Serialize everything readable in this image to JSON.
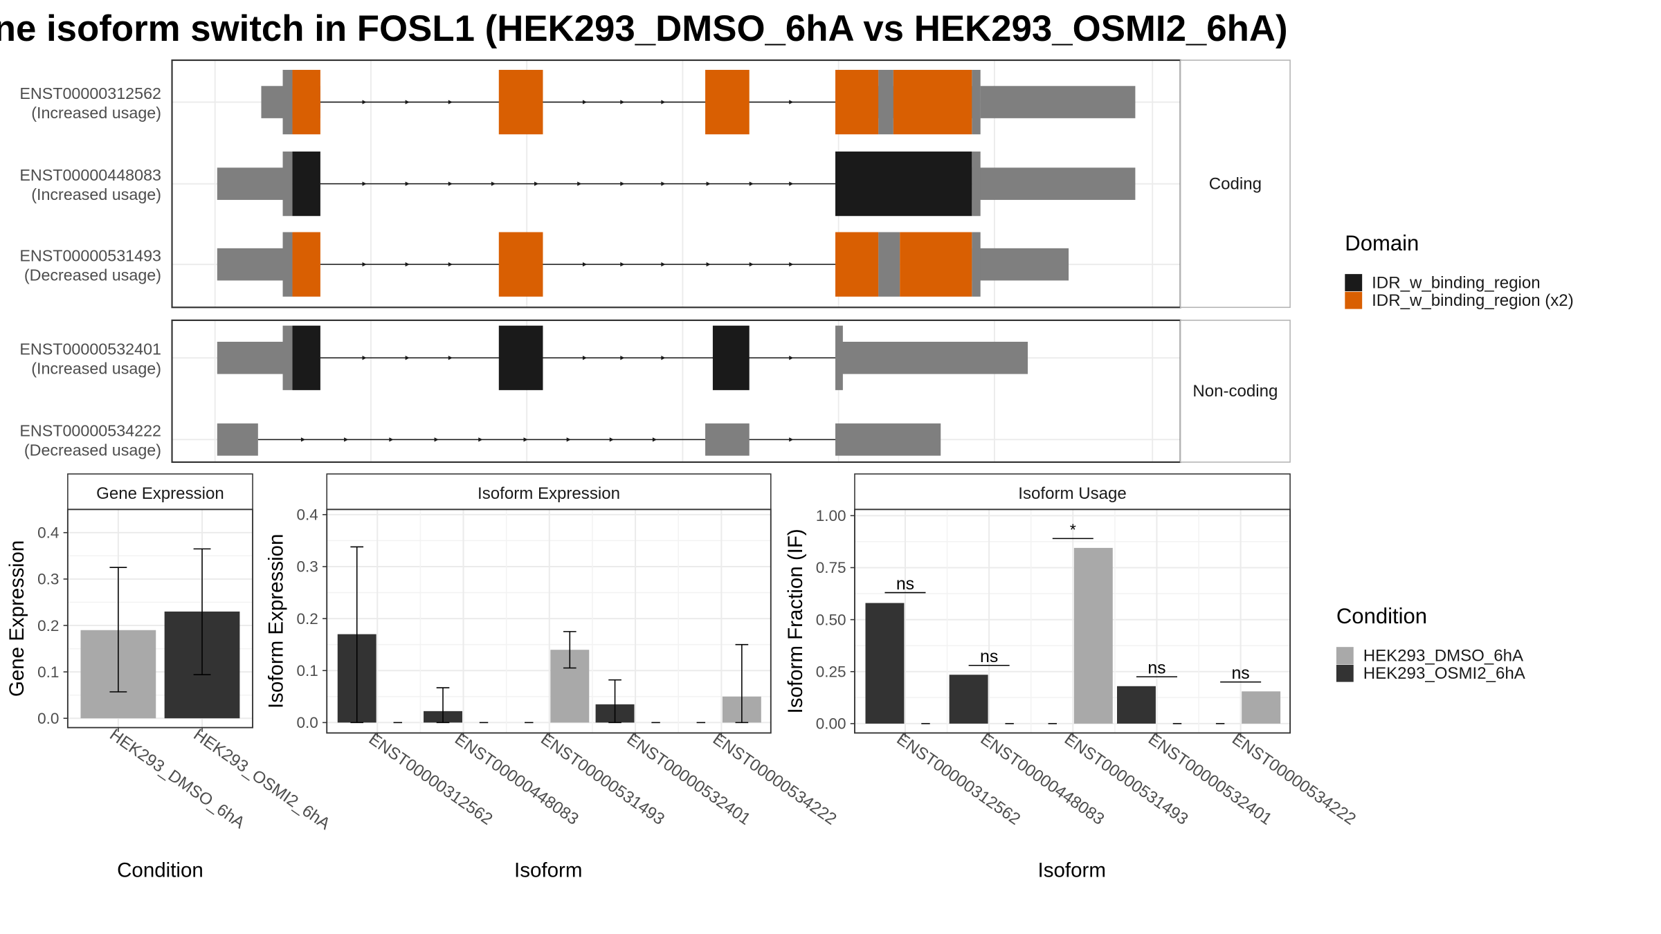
{
  "title": "ne isoform switch in FOSL1 (HEK293_DMSO_6hA vs HEK293_OSMI2_6hA)",
  "colors": {
    "utr": "#7f7f7f",
    "domain_black": "#1a1a1a",
    "domain_orange": "#d95f02",
    "dmso": "#a9a9a9",
    "osmi2": "#333333",
    "grid": "#ebebeb",
    "strip_bg": "#ffffff",
    "panel_border": "#333333"
  },
  "transcript_panel": {
    "coding_label": "Coding",
    "noncoding_label": "Non-coding",
    "transcripts": [
      {
        "id": "ENST00000312562",
        "usage": "(Increased usage)",
        "group": "coding",
        "line": [
          298,
          777
        ],
        "utr": [
          [
            243,
            298
          ],
          [
            777,
            912
          ],
          [
            912,
            1056
          ]
        ],
        "cds_grey": [
          [
            263,
            272
          ],
          [
            817,
            831
          ],
          [
            904,
            912
          ]
        ],
        "domains": [
          [
            272,
            298,
            "orange"
          ],
          [
            464,
            505,
            "orange"
          ],
          [
            656,
            697,
            "orange"
          ],
          [
            777,
            817,
            "orange"
          ],
          [
            831,
            904,
            "orange"
          ]
        ],
        "arrows": [
          340,
          380,
          420,
          545,
          580,
          618,
          737
        ]
      },
      {
        "id": "ENST00000448083",
        "usage": "(Increased usage)",
        "group": "coding",
        "line": [
          298,
          777
        ],
        "utr": [
          [
            202,
            272
          ],
          [
            904,
            1056
          ]
        ],
        "cds_grey": [
          [
            263,
            272
          ],
          [
            904,
            912
          ]
        ],
        "domains": [
          [
            272,
            298,
            "black"
          ],
          [
            777,
            904,
            "black"
          ]
        ],
        "arrows": [
          340,
          380,
          420,
          460,
          500,
          540,
          580,
          618,
          660,
          700,
          737
        ]
      },
      {
        "id": "ENST00000531493",
        "usage": "(Decreased usage)",
        "group": "coding",
        "line": [
          298,
          777
        ],
        "utr": [
          [
            202,
            272
          ],
          [
            904,
            994
          ]
        ],
        "cds_grey": [
          [
            263,
            272
          ],
          [
            817,
            837
          ],
          [
            904,
            912
          ]
        ],
        "domains": [
          [
            272,
            298,
            "orange"
          ],
          [
            464,
            505,
            "orange"
          ],
          [
            777,
            817,
            "orange"
          ],
          [
            837,
            904,
            "orange"
          ]
        ],
        "arrows": [
          340,
          380,
          420,
          545,
          580,
          618,
          660,
          700,
          737
        ]
      },
      {
        "id": "ENST00000532401",
        "usage": "(Increased usage)",
        "group": "noncoding",
        "line": [
          298,
          777
        ],
        "utr": [
          [
            202,
            272
          ],
          [
            777,
            956
          ]
        ],
        "cds_grey": [
          [
            263,
            272
          ],
          [
            777,
            784
          ]
        ],
        "domains": [
          [
            272,
            298,
            "black"
          ],
          [
            464,
            505,
            "black"
          ],
          [
            663,
            697,
            "black"
          ]
        ],
        "arrows": [
          340,
          380,
          420,
          545,
          580,
          618,
          737
        ]
      },
      {
        "id": "ENST00000534222",
        "usage": "(Decreased usage)",
        "group": "noncoding",
        "line": [
          240,
          777
        ],
        "utr": [
          [
            202,
            240
          ],
          [
            656,
            697
          ],
          [
            777,
            875
          ]
        ],
        "cds_grey": [],
        "domains": [],
        "arrows": [
          283,
          323,
          365,
          407,
          448,
          490,
          530,
          570,
          610,
          737
        ]
      }
    ]
  },
  "domain_legend": {
    "title": "Domain",
    "items": [
      {
        "label": "IDR_w_binding_region",
        "color": "#1a1a1a"
      },
      {
        "label": "IDR_w_binding_region (x2)",
        "color": "#d95f02"
      }
    ]
  },
  "condition_legend": {
    "title": "Condition",
    "items": [
      {
        "label": "HEK293_DMSO_6hA",
        "color": "#a9a9a9"
      },
      {
        "label": "HEK293_OSMI2_6hA",
        "color": "#333333"
      }
    ]
  },
  "chart_data": [
    {
      "type": "bar",
      "title": "Gene Expression",
      "xlabel": "Condition",
      "ylabel": "Gene Expression",
      "categories": [
        "HEK293_DMSO_6hA",
        "HEK293_OSMI2_6hA"
      ],
      "values": [
        0.19,
        0.23
      ],
      "error_low": [
        0.057,
        0.094
      ],
      "error_high": [
        0.325,
        0.365
      ],
      "colors": [
        "#a9a9a9",
        "#333333"
      ],
      "ylim": [
        -0.02,
        0.45
      ],
      "yticks": [
        0.0,
        0.1,
        0.2,
        0.3,
        0.4
      ],
      "ytick_labels": [
        "0.0",
        "0.1",
        "0.2",
        "0.3",
        "0.4"
      ]
    },
    {
      "type": "bar",
      "title": "Isoform Expression",
      "xlabel": "Isoform",
      "ylabel": "Isoform Expression",
      "categories": [
        "ENST00000312562",
        "ENST00000448083",
        "ENST00000531493",
        "ENST00000532401",
        "ENST00000534222"
      ],
      "ylim": [
        -0.02,
        0.41
      ],
      "yticks": [
        0.0,
        0.1,
        0.2,
        0.3,
        0.4
      ],
      "ytick_labels": [
        "0.0",
        "0.1",
        "0.2",
        "0.3",
        "0.4"
      ],
      "series": [
        {
          "name": "HEK293_DMSO_6hA",
          "color": "#a9a9a9",
          "values": [
            0.0,
            0.0,
            0.14,
            0.0,
            0.05
          ],
          "error_low": [
            0.0,
            0.0,
            0.105,
            0.0,
            0.0
          ],
          "error_high": [
            0.0,
            0.0,
            0.175,
            0.0,
            0.15
          ]
        },
        {
          "name": "HEK293_OSMI2_6hA",
          "color": "#333333",
          "values": [
            0.17,
            0.022,
            0.0,
            0.035,
            0.0
          ],
          "error_low": [
            0.0,
            0.0,
            0.0,
            0.0,
            0.0
          ],
          "error_high": [
            0.338,
            0.067,
            0.0,
            0.082,
            0.0
          ]
        }
      ]
    },
    {
      "type": "bar",
      "title": "Isoform Usage",
      "xlabel": "Isoform",
      "ylabel": "Isoform Fraction (IF)",
      "categories": [
        "ENST00000312562",
        "ENST00000448083",
        "ENST00000531493",
        "ENST00000532401",
        "ENST00000534222"
      ],
      "ylim": [
        -0.045,
        1.03
      ],
      "yticks": [
        0.0,
        0.25,
        0.5,
        0.75,
        1.0
      ],
      "ytick_labels": [
        "0.00",
        "0.25",
        "0.50",
        "0.75",
        "1.00"
      ],
      "series": [
        {
          "name": "HEK293_DMSO_6hA",
          "color": "#a9a9a9",
          "values": [
            0.0,
            0.0,
            0.845,
            0.0,
            0.155
          ]
        },
        {
          "name": "HEK293_OSMI2_6hA",
          "color": "#333333",
          "values": [
            0.58,
            0.235,
            0.0,
            0.18,
            0.0
          ]
        }
      ],
      "significance": [
        {
          "label": "ns",
          "y": 0.63
        },
        {
          "label": "ns",
          "y": 0.28
        },
        {
          "label": "*",
          "y": 0.89
        },
        {
          "label": "ns",
          "y": 0.225
        },
        {
          "label": "ns",
          "y": 0.2
        }
      ]
    }
  ]
}
